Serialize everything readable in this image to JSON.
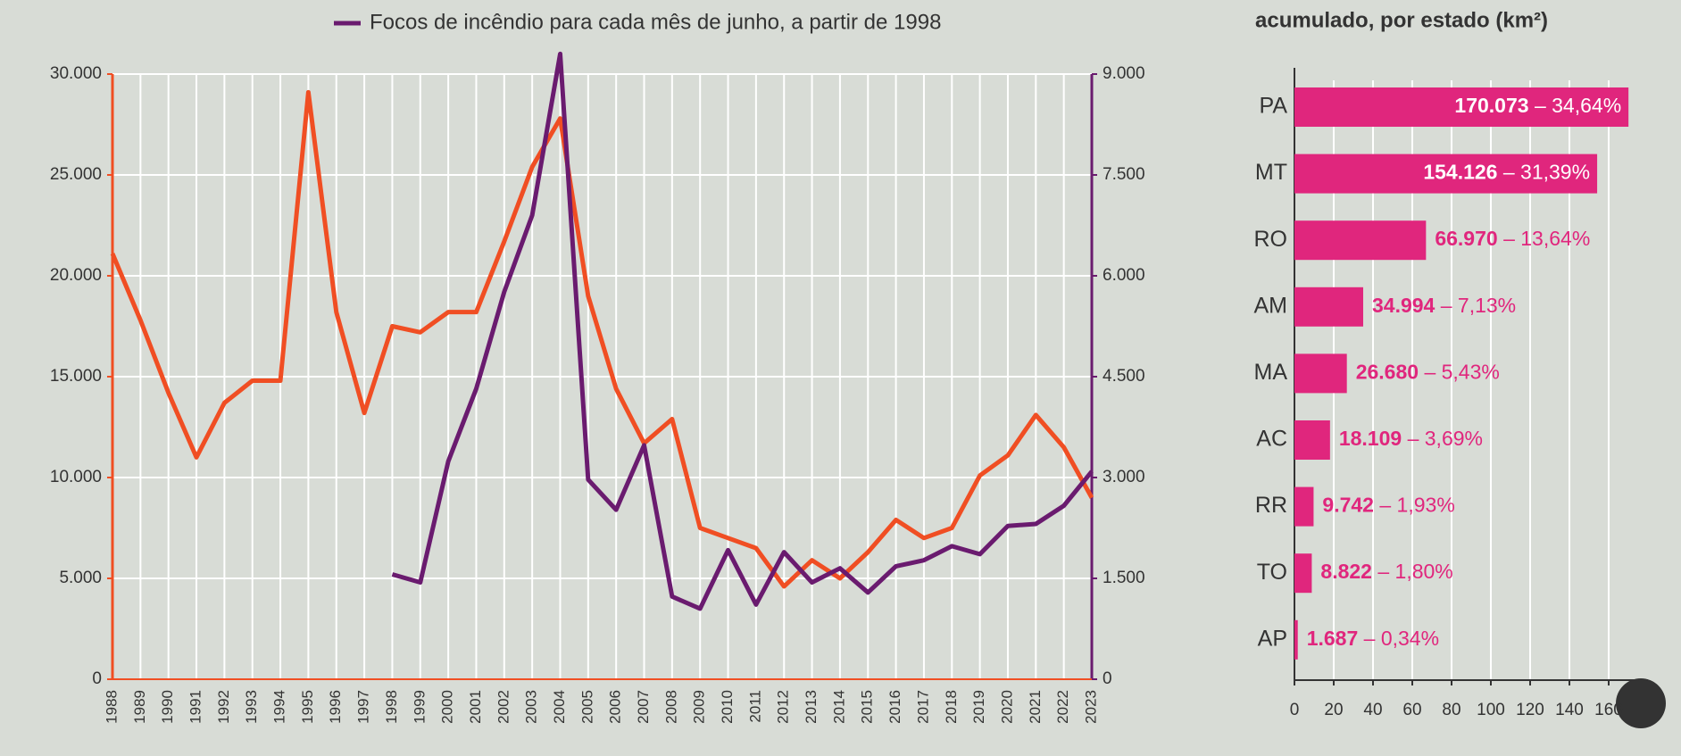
{
  "chart_data": [
    {
      "type": "line",
      "categories": [
        "1988",
        "1989",
        "1990",
        "1991",
        "1992",
        "1993",
        "1994",
        "1995",
        "1996",
        "1997",
        "1998",
        "1999",
        "2000",
        "2001",
        "2002",
        "2003",
        "2004",
        "2005",
        "2006",
        "2007",
        "2008",
        "2009",
        "2010",
        "2011",
        "2012",
        "2013",
        "2014",
        "2015",
        "2016",
        "2017",
        "2018",
        "2019",
        "2020",
        "2021",
        "2022",
        "2023"
      ],
      "series": [
        {
          "color": "#f04e23",
          "values": [
            21100,
            17800,
            14200,
            11000,
            13700,
            14800,
            14800,
            29100,
            18200,
            13200,
            17500,
            17200,
            18200,
            18200,
            21700,
            25400,
            27800,
            19000,
            14400,
            11700,
            12900,
            7500,
            7000,
            6500,
            4600,
            5900,
            5000,
            6300,
            7900,
            7000,
            7500,
            10100,
            11100,
            13100,
            11500,
            9000
          ]
        },
        {
          "name": "Focos de incêndio para cada mês de junho, a partir de 1998",
          "color": "#6a1b6f",
          "axis": "y2",
          "values": [
            null,
            null,
            null,
            null,
            null,
            null,
            null,
            null,
            null,
            null,
            1560,
            1440,
            3240,
            4320,
            5760,
            6900,
            9300,
            2970,
            2520,
            3480,
            1230,
            1050,
            1920,
            1110,
            1890,
            1440,
            1650,
            1290,
            1680,
            1770,
            1980,
            1860,
            2280,
            2310,
            2580,
            3090
          ]
        }
      ],
      "ylim": [
        0,
        30000
      ],
      "yticks": [
        0,
        {
          "value": 5000,
          "label": "5.000"
        },
        {
          "value": 10000,
          "label": "10.000"
        },
        {
          "value": 15000,
          "label": "15.000"
        },
        {
          "value": 20000,
          "label": "20.000"
        },
        {
          "value": 25000,
          "label": "25.000"
        },
        {
          "value": 30000,
          "label": "30.000"
        }
      ],
      "y2lim": [
        0,
        9000
      ],
      "y2ticks": [
        0,
        {
          "value": 1500,
          "label": "1.500"
        },
        {
          "value": 3000,
          "label": "3.000"
        },
        {
          "value": 4500,
          "label": "4.500"
        },
        {
          "value": 6000,
          "label": "6.000"
        },
        {
          "value": 7500,
          "label": "7.500"
        },
        {
          "value": 9000,
          "label": "9.000"
        }
      ],
      "grid": true
    },
    {
      "type": "barh",
      "title": "acumulado, por estado (km²)",
      "categories": [
        "PA",
        "MT",
        "RO",
        "AM",
        "MA",
        "AC",
        "RR",
        "TO",
        "AP"
      ],
      "values": [
        170073,
        154126,
        66970,
        34994,
        26680,
        18109,
        9742,
        8822,
        1687
      ],
      "value_labels": [
        "170.073",
        "154.126",
        "66.970",
        "34.994",
        "26.680",
        "18.109",
        "9.742",
        "8.822",
        "1.687"
      ],
      "percent_labels": [
        "– 34,64%",
        "– 31,39%",
        "– 13,64%",
        "– 7,13%",
        "– 5,43%",
        "– 3,69%",
        "– 1,93%",
        "– 1,80%",
        "– 0,34%"
      ],
      "color": "#e0267d",
      "xlim": [
        0,
        180000
      ],
      "xticks": [
        0,
        {
          "value": 20000,
          "label": "20"
        },
        {
          "value": 40000,
          "label": "40"
        },
        {
          "value": 60000,
          "label": "60"
        },
        {
          "value": 80000,
          "label": "80"
        },
        {
          "value": 100000,
          "label": "100"
        },
        {
          "value": 120000,
          "label": "120"
        },
        {
          "value": 140000,
          "label": "140"
        },
        {
          "value": 160000,
          "label": "160"
        }
      ],
      "grid": true
    }
  ]
}
